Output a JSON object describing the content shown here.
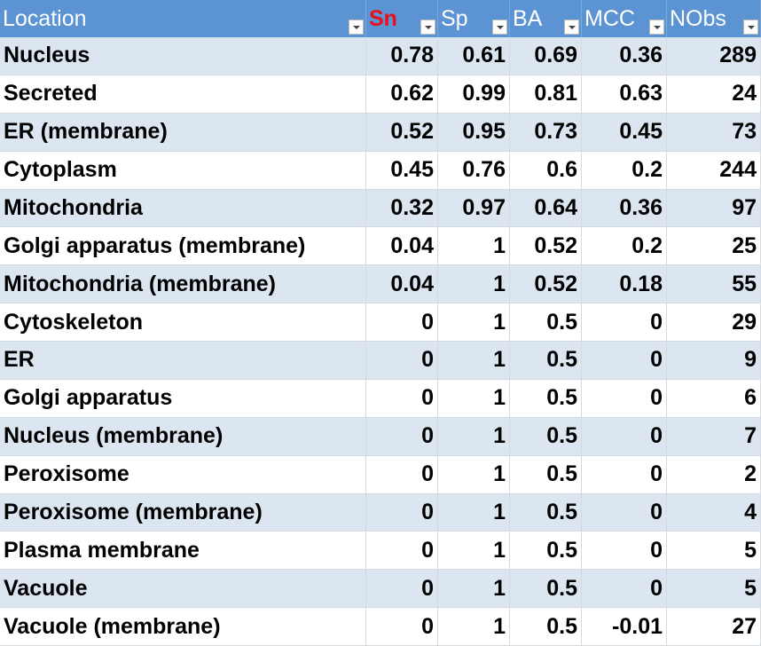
{
  "table": {
    "columns": [
      "Location",
      "Sn",
      "Sp",
      "BA",
      "MCC",
      "NObs"
    ],
    "rows": [
      [
        "Nucleus",
        0.78,
        0.61,
        0.69,
        0.36,
        289
      ],
      [
        "Secreted",
        0.62,
        0.99,
        0.81,
        0.63,
        24
      ],
      [
        "ER (membrane)",
        0.52,
        0.95,
        0.73,
        0.45,
        73
      ],
      [
        "Cytoplasm",
        0.45,
        0.76,
        0.6,
        0.2,
        244
      ],
      [
        "Mitochondria",
        0.32,
        0.97,
        0.64,
        0.36,
        97
      ],
      [
        "Golgi apparatus (membrane)",
        0.04,
        1,
        0.52,
        0.2,
        25
      ],
      [
        "Mitochondria (membrane)",
        0.04,
        1,
        0.52,
        0.18,
        55
      ],
      [
        "Cytoskeleton",
        0,
        1,
        0.5,
        0,
        29
      ],
      [
        "ER",
        0,
        1,
        0.5,
        0,
        9
      ],
      [
        "Golgi apparatus",
        0,
        1,
        0.5,
        0,
        6
      ],
      [
        "Nucleus (membrane)",
        0,
        1,
        0.5,
        0,
        7
      ],
      [
        "Peroxisome",
        0,
        1,
        0.5,
        0,
        2
      ],
      [
        "Peroxisome (membrane)",
        0,
        1,
        0.5,
        0,
        4
      ],
      [
        "Plasma membrane",
        0,
        1,
        0.5,
        0,
        5
      ],
      [
        "Vacuole",
        0,
        1,
        0.5,
        0,
        5
      ],
      [
        "Vacuole (membrane)",
        0,
        1,
        0.5,
        -0.01,
        27
      ]
    ]
  }
}
